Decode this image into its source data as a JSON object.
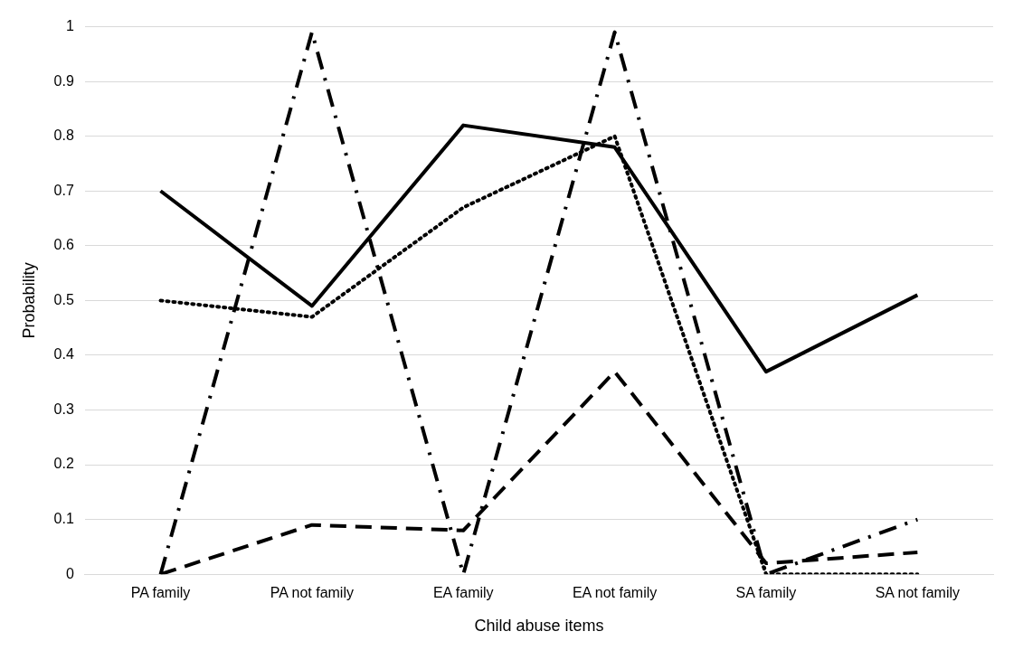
{
  "chart_data": {
    "type": "line",
    "xlabel": "Child abuse items",
    "ylabel": "Probability",
    "categories": [
      "PA family",
      "PA not family",
      "EA family",
      "EA not family",
      "SA family",
      "SA not family"
    ],
    "series": [
      {
        "color": "#000000",
        "line_style": "solid",
        "values": [
          0.7,
          0.49,
          0.82,
          0.78,
          0.37,
          0.51
        ]
      },
      {
        "color": "#000000",
        "line_style": "dotted",
        "values": [
          0.5,
          0.47,
          0.67,
          0.8,
          0.0,
          0.0
        ]
      },
      {
        "color": "#000000",
        "line_style": "dashdot",
        "values": [
          0.0,
          0.99,
          0.0,
          0.99,
          0.0,
          0.1
        ]
      },
      {
        "color": "#000000",
        "line_style": "dashed",
        "values": [
          0.0,
          0.09,
          0.08,
          0.37,
          0.02,
          0.04
        ]
      }
    ],
    "ylim": [
      0,
      1
    ],
    "yticks": [
      0,
      0.1,
      0.2,
      0.3,
      0.4,
      0.5,
      0.6,
      0.7,
      0.8,
      0.9,
      1
    ],
    "grid": "y",
    "legend": false,
    "marker": "none"
  }
}
